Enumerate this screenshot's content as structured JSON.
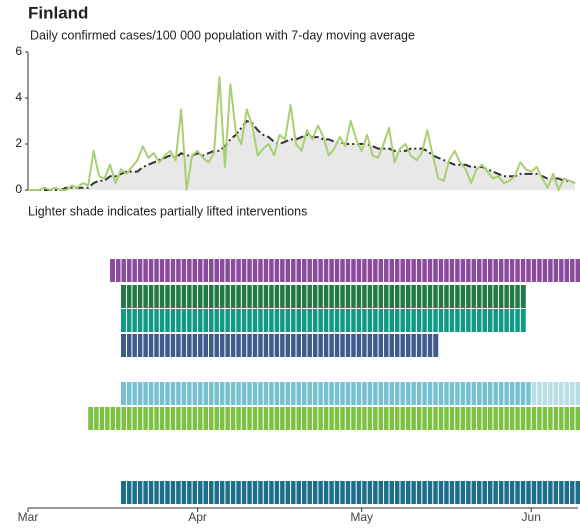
{
  "chart_data": {
    "type": "line",
    "title": "Finland",
    "subtitle": "Daily confirmed cases/100 000 population with 7-day moving average",
    "annotation": "Lighter shade indicates partially lifted interventions",
    "categories": [
      "Mar",
      null,
      null,
      null,
      null,
      null,
      null,
      null,
      null,
      null,
      null,
      null,
      null,
      null,
      null,
      null,
      null,
      null,
      null,
      null,
      null,
      null,
      null,
      null,
      null,
      null,
      null,
      null,
      null,
      null,
      null,
      "Apr",
      null,
      null,
      null,
      null,
      null,
      null,
      null,
      null,
      null,
      null,
      null,
      null,
      null,
      null,
      null,
      null,
      null,
      null,
      null,
      null,
      null,
      null,
      null,
      null,
      null,
      null,
      null,
      null,
      null,
      "May",
      null,
      null,
      null,
      null,
      null,
      null,
      null,
      null,
      null,
      null,
      null,
      null,
      null,
      null,
      null,
      null,
      null,
      null,
      null,
      null,
      null,
      null,
      null,
      null,
      null,
      null,
      null,
      null,
      null,
      null,
      "Jun",
      null,
      null,
      null,
      null,
      null,
      null,
      null,
      null
    ],
    "ylim": [
      0,
      6
    ],
    "yticks": [
      0,
      2,
      4,
      6
    ],
    "series": [
      {
        "color": "#a9cf73",
        "values": [
          0,
          0,
          0,
          0.1,
          0,
          0.1,
          0,
          0,
          0.2,
          0.1,
          0.3,
          0.2,
          1.7,
          0.6,
          0.5,
          1.1,
          0.3,
          0.9,
          0.7,
          1.0,
          1.3,
          1.9,
          1.4,
          1.6,
          1.2,
          1.5,
          1.7,
          1.3,
          3.5,
          0,
          1.5,
          1.7,
          1.4,
          1.2,
          1.6,
          4.9,
          1.0,
          4.6,
          2.5,
          2.0,
          3.5,
          2.8,
          1.5,
          1.8,
          2.0,
          1.5,
          2.4,
          2.2,
          3.7,
          2.0,
          1.7,
          2.6,
          2.2,
          2.8,
          2.3,
          1.5,
          1.8,
          2.3,
          1.9,
          3.0,
          2.2,
          1.7,
          2.4,
          1.5,
          1.4,
          2.0,
          2.7,
          1.2,
          1.8,
          2.0,
          1.5,
          1.3,
          1.6,
          2.6,
          1.5,
          0.5,
          0.4,
          1.3,
          1.7,
          1.2,
          0.9,
          0.3,
          0.9,
          1.1,
          0.8,
          0.5,
          0.6,
          0.3,
          0.4,
          0.6,
          1.2,
          0.9,
          0.8,
          1.0,
          0.5,
          0.1,
          0.7,
          0.0,
          0.5,
          0.4,
          0.3
        ]
      },
      {
        "color": "#333333",
        "dashed": true,
        "fill": "#e8e8e8",
        "values": [
          0,
          0,
          0,
          0,
          0,
          0,
          0,
          0.1,
          0.1,
          0.1,
          0.1,
          0.1,
          0.3,
          0.4,
          0.4,
          0.6,
          0.6,
          0.7,
          0.8,
          0.8,
          0.8,
          1.0,
          1.1,
          1.2,
          1.3,
          1.4,
          1.5,
          1.4,
          1.6,
          1.5,
          1.5,
          1.6,
          1.5,
          1.6,
          1.7,
          1.7,
          1.9,
          2.2,
          2.4,
          2.7,
          3.0,
          2.9,
          2.6,
          2.4,
          2.3,
          2.1,
          2.0,
          2.1,
          2.2,
          2.2,
          2.3,
          2.4,
          2.3,
          2.3,
          2.2,
          2.2,
          2.1,
          2.1,
          2.0,
          2.0,
          2.0,
          2.0,
          2.0,
          1.9,
          1.8,
          1.8,
          1.8,
          1.7,
          1.7,
          1.7,
          1.8,
          1.8,
          1.8,
          1.7,
          1.5,
          1.4,
          1.3,
          1.2,
          1.1,
          1.1,
          1.1,
          1.0,
          1.0,
          1.0,
          0.9,
          0.8,
          0.7,
          0.6,
          0.6,
          0.6,
          0.7,
          0.7,
          0.7,
          0.7,
          0.6,
          0.5,
          0.5,
          0.5,
          0.4,
          0.4,
          0.3
        ]
      }
    ],
    "interventions": [
      {
        "color": "#8c4a9e",
        "start": 15,
        "end": 100
      },
      {
        "color": "#1f7a45",
        "start": 17,
        "end": 90
      },
      {
        "color": "#109a86",
        "start": 17,
        "end": 90
      },
      {
        "color": "#3e5b8c",
        "start": 17,
        "end": 74
      },
      {
        "color": "#74c2cf",
        "start": 17,
        "end": 100,
        "lifted_from": 92,
        "lifted_color": "#b6dfe6"
      },
      {
        "color": "#7cc242",
        "start": 11,
        "end": 100
      },
      {
        "color": "#1b6f8a",
        "start": 17,
        "end": 100
      }
    ]
  }
}
